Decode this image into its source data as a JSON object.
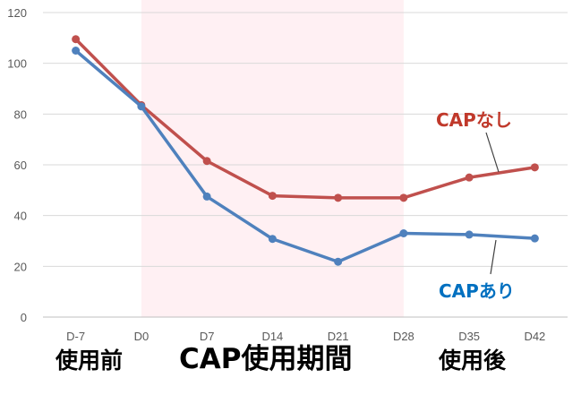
{
  "chart_data": {
    "type": "line",
    "categories": [
      "D-7",
      "D0",
      "D7",
      "D14",
      "D21",
      "D28",
      "D35",
      "D42"
    ],
    "yticks": [
      "0",
      "20",
      "40",
      "60",
      "80",
      "100",
      "120"
    ],
    "ylim": [
      0,
      120
    ],
    "grid": true,
    "series": [
      {
        "name": "CAPなし",
        "color": "#c0504d",
        "values": [
          109.5,
          83.5,
          61.5,
          47.8,
          47.0,
          47.0,
          55.0,
          59.0
        ]
      },
      {
        "name": "CAPあり",
        "color": "#4f81bd",
        "values": [
          105.0,
          83.0,
          47.5,
          30.8,
          21.8,
          33.0,
          32.5,
          31.0
        ]
      }
    ],
    "series_label_colors": {
      "no_cap": "#c0392b",
      "with_cap": "#0070c0"
    },
    "highlight_region": {
      "from": "D0",
      "to": "D28",
      "color": "#fff0f3"
    },
    "phase_labels": {
      "before": "使用前",
      "during": "CAP使用期間",
      "after": "使用後"
    }
  }
}
